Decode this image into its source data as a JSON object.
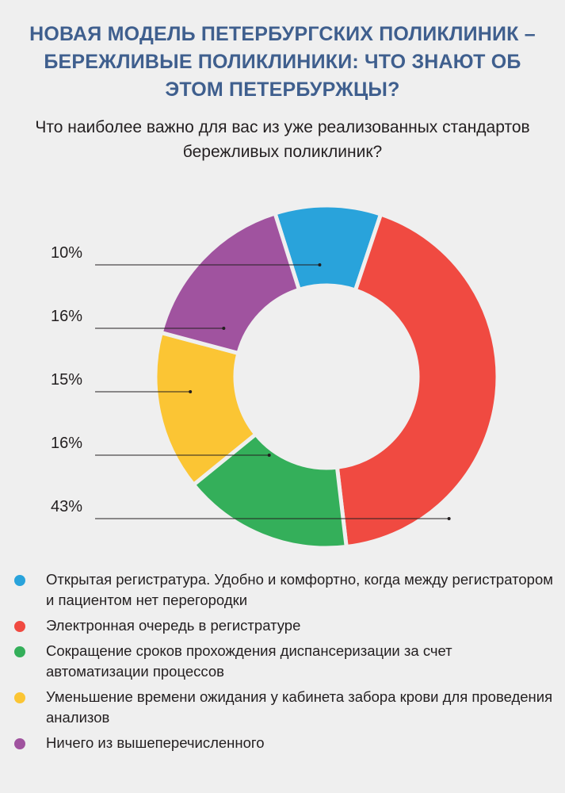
{
  "title": "НОВАЯ МОДЕЛЬ ПЕТЕРБУРГСКИХ ПОЛИКЛИНИК – БЕРЕЖЛИВЫЕ ПОЛИКЛИНИКИ: ЧТО ЗНАЮТ ОБ ЭТОМ ПЕТЕРБУРЖЦЫ?",
  "subtitle": "Что наиболее важно для вас из уже реализованных стандартов бережливых поликлиник?",
  "chart_data": {
    "type": "pie",
    "variant": "donut",
    "unit": "%",
    "slices": [
      {
        "label": "Открытая регистратура. Удобно и комфортно, когда между регистратором и пациентом нет перегородки",
        "value": 10,
        "value_label": "10%",
        "color": "#29a3db"
      },
      {
        "label": "Электронная очередь в регистратуре",
        "value": 43,
        "value_label": "43%",
        "color": "#f04a41"
      },
      {
        "label": "Сокращение сроков прохождения диспансеризации за счет автоматизации процессов",
        "value": 16,
        "value_label": "16%",
        "color": "#34af5a"
      },
      {
        "label": "Уменьшение времени ожидания у кабинета забора крови для проведения анализов",
        "value": 15,
        "value_label": "15%",
        "color": "#fbc534"
      },
      {
        "label": "Ничего из вышеперечисленного",
        "value": 16,
        "value_label": "16%",
        "color": "#a0539f"
      }
    ],
    "label_order": [
      0,
      4,
      3,
      2,
      1
    ]
  }
}
